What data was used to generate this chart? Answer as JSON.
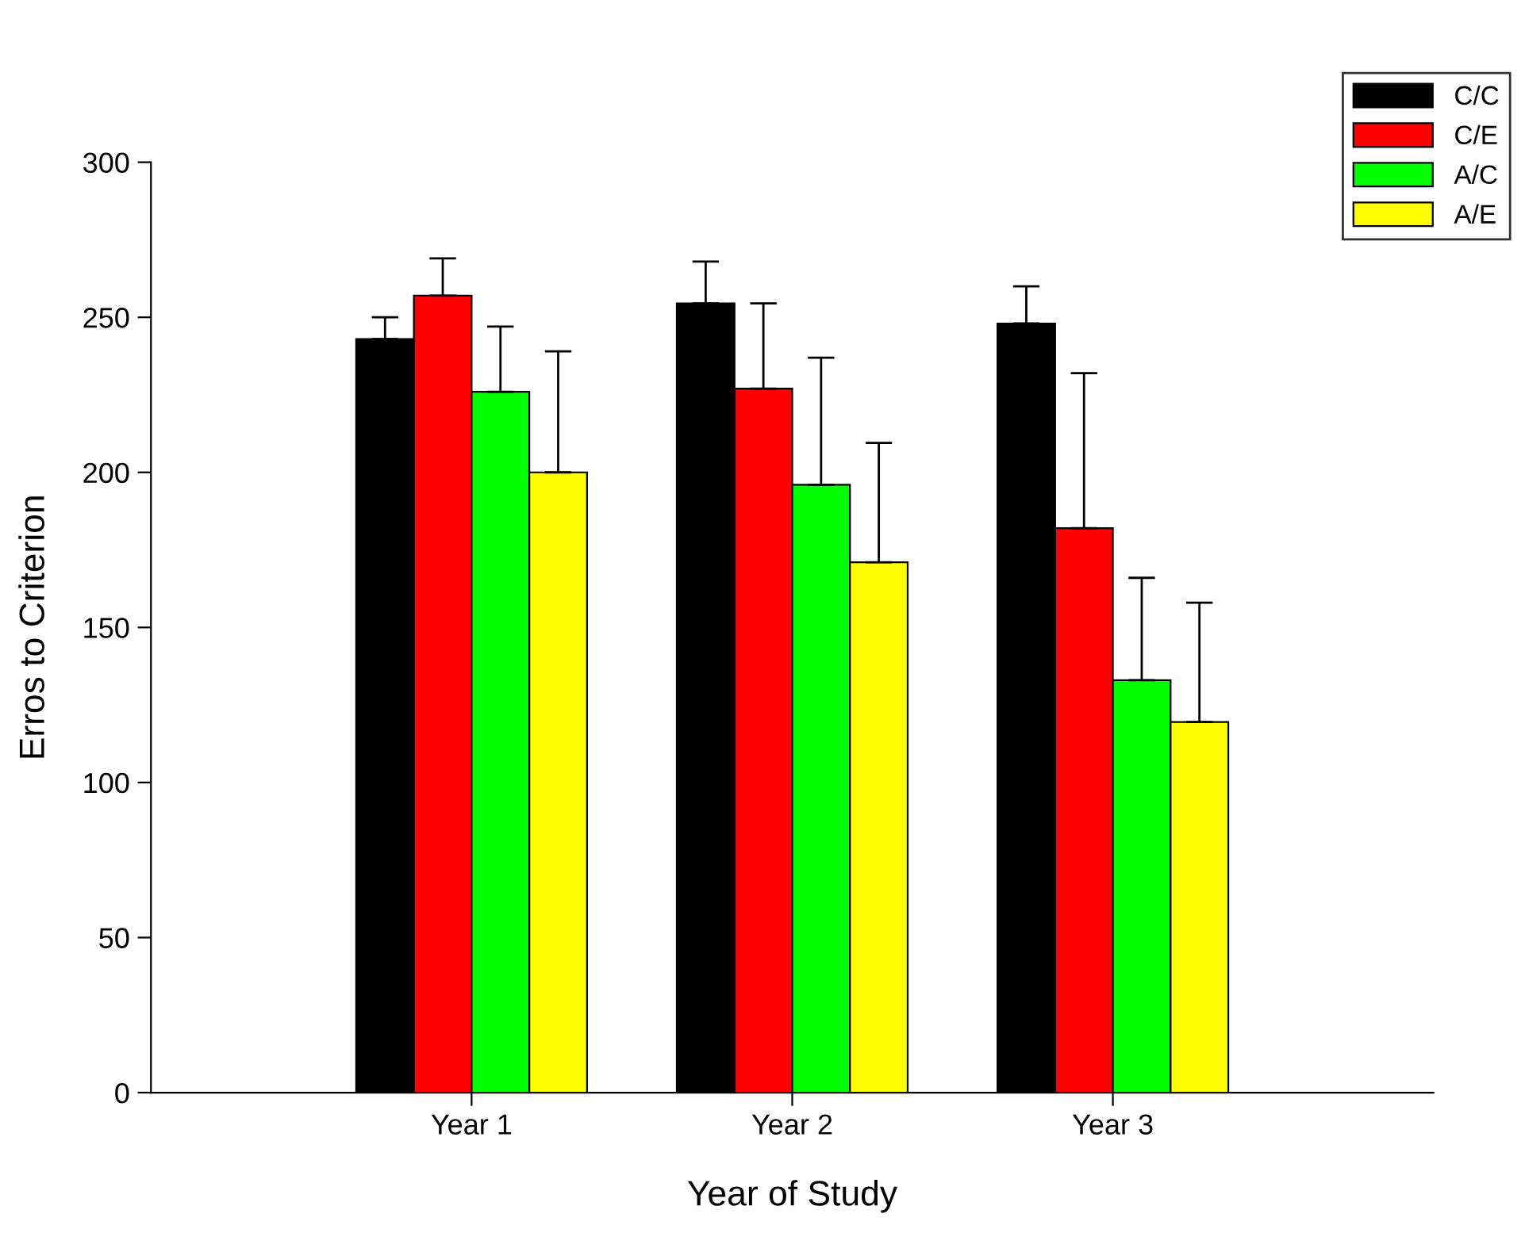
{
  "chart_data": {
    "type": "bar",
    "xlabel": "Year of Study",
    "ylabel": "Erros to Criterion",
    "categories": [
      "Year 1",
      "Year 2",
      "Year 3"
    ],
    "series": [
      {
        "name": "C/C",
        "color": "#000000",
        "values": [
          243,
          254.5,
          248
        ],
        "errors": [
          7,
          13.5,
          12
        ]
      },
      {
        "name": "C/E",
        "color": "#ff0000",
        "values": [
          257,
          227,
          182
        ],
        "errors": [
          12,
          27.5,
          50
        ]
      },
      {
        "name": "A/C",
        "color": "#00ff00",
        "values": [
          226,
          196,
          133
        ],
        "errors": [
          21,
          41,
          33
        ]
      },
      {
        "name": "A/E",
        "color": "#ffff00",
        "values": [
          200,
          171,
          119.5
        ],
        "errors": [
          39,
          38.5,
          38.5
        ]
      }
    ],
    "ylim": [
      0,
      300
    ],
    "yticks": [
      0,
      50,
      100,
      150,
      200,
      250,
      300
    ],
    "grid": false,
    "legend": "top right"
  }
}
